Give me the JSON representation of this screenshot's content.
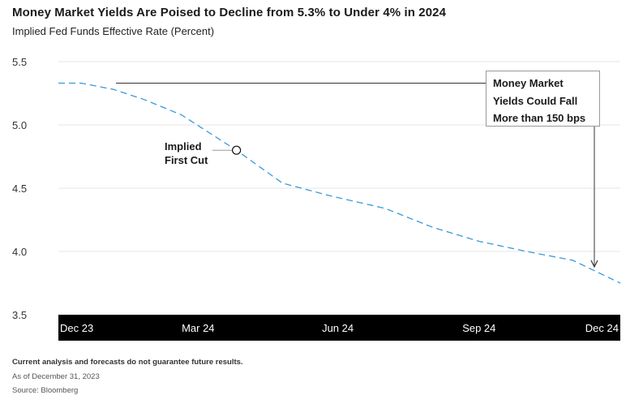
{
  "title": "Money Market Yields Are Poised to Decline from 5.3% to Under 4% in 2024",
  "subtitle": "Implied Fed Funds Effective Rate (Percent)",
  "footer": {
    "disclaimer": "Current analysis and forecasts do not guarantee future results.",
    "as_of": "As of December 31, 2023",
    "source": "Source: Bloomberg"
  },
  "colors": {
    "line": "#3a9ad9",
    "axis_band": "#000000",
    "grid": "#e6e6e6",
    "annotation": "#333333"
  },
  "chart_data": {
    "type": "line",
    "xlabel": "",
    "ylabel": "",
    "ylim": [
      3.5,
      5.5
    ],
    "yticks": [
      "5.5",
      "5.0",
      "4.5",
      "4.0",
      "3.5"
    ],
    "xticks": [
      "Dec 23",
      "Mar 24",
      "Jun 24",
      "Sep 24",
      "Dec 24"
    ],
    "grid": "horizontal",
    "series": [
      {
        "style": "dashed",
        "x": [
          "2023-12-31",
          "2024-01-15",
          "2024-02-05",
          "2024-02-25",
          "2024-03-20",
          "2024-04-25",
          "2024-05-25",
          "2024-06-25",
          "2024-07-31",
          "2024-08-31",
          "2024-09-30",
          "2024-10-31",
          "2024-11-30",
          "2024-12-31"
        ],
        "values": [
          5.33,
          5.33,
          5.28,
          5.2,
          5.08,
          4.8,
          4.54,
          4.44,
          4.34,
          4.19,
          4.08,
          4.0,
          3.93,
          3.75
        ]
      }
    ],
    "annotations": [
      {
        "text_lines": [
          "Implied",
          "First Cut"
        ],
        "x": "2024-04-25",
        "y": 4.8
      },
      {
        "text_lines": [
          "Money Market",
          "Yields Could Fall",
          "More than 150 bps"
        ]
      }
    ]
  }
}
